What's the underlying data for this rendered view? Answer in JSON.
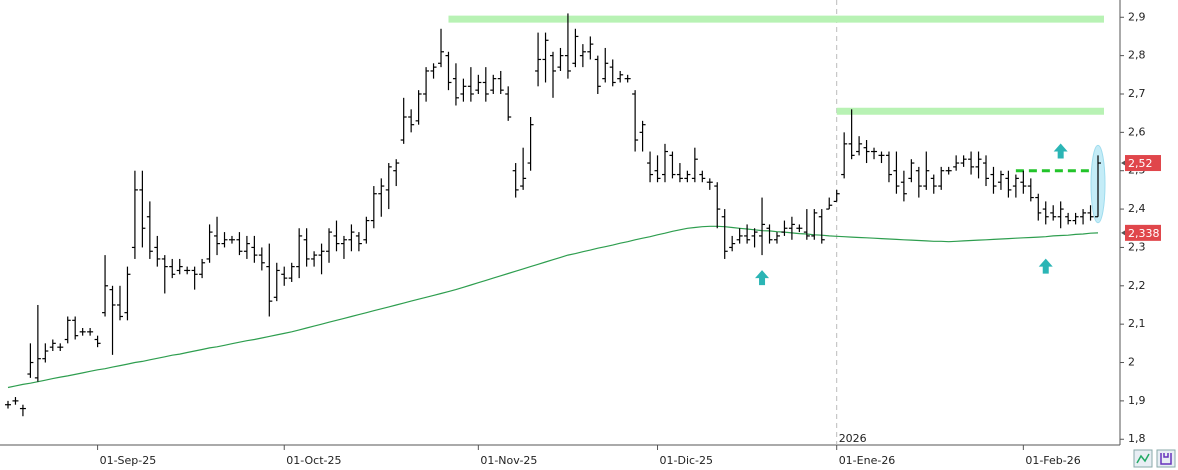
{
  "chart_data": {
    "type": "ohlc",
    "ohlc": [
      [
        1.89,
        1.9,
        1.88,
        1.89
      ],
      [
        1.9,
        1.91,
        1.89,
        1.9
      ],
      [
        1.88,
        1.89,
        1.86,
        1.88
      ],
      [
        1.97,
        2.05,
        1.96,
        2.0
      ],
      [
        1.96,
        2.15,
        1.95,
        2.01
      ],
      [
        2.01,
        2.05,
        2.0,
        2.03
      ],
      [
        2.04,
        2.06,
        2.03,
        2.05
      ],
      [
        2.04,
        2.05,
        2.03,
        2.04
      ],
      [
        2.06,
        2.12,
        2.05,
        2.11
      ],
      [
        2.11,
        2.12,
        2.06,
        2.07
      ],
      [
        2.08,
        2.09,
        2.07,
        2.08
      ],
      [
        2.08,
        2.09,
        2.07,
        2.08
      ],
      [
        2.06,
        2.07,
        2.04,
        2.05
      ],
      [
        2.13,
        2.28,
        2.12,
        2.2
      ],
      [
        2.19,
        2.2,
        2.02,
        2.15
      ],
      [
        2.15,
        2.2,
        2.11,
        2.12
      ],
      [
        2.13,
        2.25,
        2.11,
        2.23
      ],
      [
        2.3,
        2.5,
        2.27,
        2.45
      ],
      [
        2.45,
        2.5,
        2.3,
        2.35
      ],
      [
        2.38,
        2.42,
        2.27,
        2.29
      ],
      [
        2.3,
        2.33,
        2.25,
        2.27
      ],
      [
        2.27,
        2.28,
        2.18,
        2.25
      ],
      [
        2.25,
        2.27,
        2.22,
        2.23
      ],
      [
        2.24,
        2.27,
        2.23,
        2.25
      ],
      [
        2.24,
        2.25,
        2.23,
        2.24
      ],
      [
        2.24,
        2.25,
        2.19,
        2.23
      ],
      [
        2.23,
        2.27,
        2.22,
        2.26
      ],
      [
        2.27,
        2.36,
        2.26,
        2.34
      ],
      [
        2.33,
        2.38,
        2.28,
        2.31
      ],
      [
        2.31,
        2.34,
        2.3,
        2.32
      ],
      [
        2.32,
        2.33,
        2.31,
        2.32
      ],
      [
        2.32,
        2.34,
        2.28,
        2.29
      ],
      [
        2.29,
        2.33,
        2.27,
        2.31
      ],
      [
        2.3,
        2.33,
        2.26,
        2.28
      ],
      [
        2.28,
        2.3,
        2.24,
        2.26
      ],
      [
        2.25,
        2.31,
        2.12,
        2.16
      ],
      [
        2.17,
        2.26,
        2.16,
        2.24
      ],
      [
        2.23,
        2.25,
        2.2,
        2.22
      ],
      [
        2.22,
        2.26,
        2.21,
        2.25
      ],
      [
        2.25,
        2.35,
        2.22,
        2.33
      ],
      [
        2.32,
        2.35,
        2.25,
        2.27
      ],
      [
        2.27,
        2.29,
        2.25,
        2.28
      ],
      [
        2.28,
        2.31,
        2.23,
        2.29
      ],
      [
        2.29,
        2.35,
        2.26,
        2.34
      ],
      [
        2.33,
        2.37,
        2.29,
        2.31
      ],
      [
        2.31,
        2.33,
        2.27,
        2.32
      ],
      [
        2.32,
        2.36,
        2.29,
        2.34
      ],
      [
        2.33,
        2.34,
        2.29,
        2.31
      ],
      [
        2.32,
        2.38,
        2.31,
        2.37
      ],
      [
        2.37,
        2.46,
        2.35,
        2.44
      ],
      [
        2.44,
        2.48,
        2.38,
        2.46
      ],
      [
        2.45,
        2.52,
        2.4,
        2.51
      ],
      [
        2.5,
        2.53,
        2.46,
        2.52
      ],
      [
        2.58,
        2.69,
        2.57,
        2.64
      ],
      [
        2.64,
        2.66,
        2.6,
        2.62
      ],
      [
        2.63,
        2.71,
        2.62,
        2.7
      ],
      [
        2.7,
        2.77,
        2.68,
        2.76
      ],
      [
        2.76,
        2.78,
        2.74,
        2.77
      ],
      [
        2.78,
        2.87,
        2.77,
        2.81
      ],
      [
        2.8,
        2.81,
        2.71,
        2.73
      ],
      [
        2.74,
        2.78,
        2.67,
        2.69
      ],
      [
        2.7,
        2.74,
        2.68,
        2.72
      ],
      [
        2.72,
        2.77,
        2.68,
        2.7
      ],
      [
        2.71,
        2.75,
        2.7,
        2.73
      ],
      [
        2.73,
        2.77,
        2.68,
        2.7
      ],
      [
        2.71,
        2.75,
        2.7,
        2.74
      ],
      [
        2.74,
        2.76,
        2.7,
        2.71
      ],
      [
        2.7,
        2.72,
        2.63,
        2.64
      ],
      [
        2.5,
        2.52,
        2.43,
        2.45
      ],
      [
        2.46,
        2.56,
        2.45,
        2.48
      ],
      [
        2.52,
        2.64,
        2.5,
        2.62
      ],
      [
        2.76,
        2.86,
        2.72,
        2.79
      ],
      [
        2.79,
        2.86,
        2.73,
        2.84
      ],
      [
        2.8,
        2.81,
        2.69,
        2.76
      ],
      [
        2.77,
        2.82,
        2.76,
        2.8
      ],
      [
        2.8,
        2.91,
        2.74,
        2.76
      ],
      [
        2.78,
        2.87,
        2.77,
        2.85
      ],
      [
        2.8,
        2.83,
        2.77,
        2.81
      ],
      [
        2.81,
        2.85,
        2.79,
        2.83
      ],
      [
        2.79,
        2.8,
        2.7,
        2.72
      ],
      [
        2.74,
        2.82,
        2.73,
        2.78
      ],
      [
        2.77,
        2.79,
        2.72,
        2.73
      ],
      [
        2.74,
        2.76,
        2.73,
        2.75
      ],
      [
        2.74,
        2.75,
        2.73,
        2.74
      ],
      [
        2.7,
        2.71,
        2.55,
        2.58
      ],
      [
        2.6,
        2.63,
        2.55,
        2.62
      ],
      [
        2.52,
        2.55,
        2.47,
        2.49
      ],
      [
        2.5,
        2.54,
        2.47,
        2.48
      ],
      [
        2.49,
        2.57,
        2.47,
        2.55
      ],
      [
        2.54,
        2.55,
        2.48,
        2.49
      ],
      [
        2.49,
        2.52,
        2.47,
        2.48
      ],
      [
        2.48,
        2.5,
        2.47,
        2.49
      ],
      [
        2.48,
        2.56,
        2.47,
        2.53
      ],
      [
        2.49,
        2.5,
        2.47,
        2.48
      ],
      [
        2.47,
        2.48,
        2.45,
        2.47
      ],
      [
        2.46,
        2.47,
        2.35,
        2.4
      ],
      [
        2.38,
        2.4,
        2.27,
        2.29
      ],
      [
        2.3,
        2.33,
        2.29,
        2.31
      ],
      [
        2.32,
        2.35,
        2.31,
        2.33
      ],
      [
        2.33,
        2.36,
        2.31,
        2.32
      ],
      [
        2.33,
        2.35,
        2.3,
        2.34
      ],
      [
        2.33,
        2.43,
        2.28,
        2.36
      ],
      [
        2.35,
        2.36,
        2.31,
        2.32
      ],
      [
        2.32,
        2.34,
        2.31,
        2.33
      ],
      [
        2.34,
        2.37,
        2.33,
        2.35
      ],
      [
        2.35,
        2.38,
        2.32,
        2.36
      ],
      [
        2.35,
        2.36,
        2.34,
        2.35
      ],
      [
        2.34,
        2.4,
        2.32,
        2.33
      ],
      [
        2.33,
        2.4,
        2.32,
        2.39
      ],
      [
        2.38,
        2.4,
        2.31,
        2.32
      ],
      [
        2.4,
        2.43,
        2.4,
        2.41
      ],
      [
        2.42,
        2.45,
        2.42,
        2.44
      ],
      [
        2.49,
        2.6,
        2.48,
        2.57
      ],
      [
        2.57,
        2.66,
        2.53,
        2.54
      ],
      [
        2.55,
        2.59,
        2.54,
        2.57
      ],
      [
        2.56,
        2.58,
        2.52,
        2.55
      ],
      [
        2.55,
        2.56,
        2.53,
        2.55
      ],
      [
        2.54,
        2.55,
        2.52,
        2.54
      ],
      [
        2.54,
        2.55,
        2.47,
        2.49
      ],
      [
        2.5,
        2.55,
        2.44,
        2.46
      ],
      [
        2.47,
        2.5,
        2.42,
        2.44
      ],
      [
        2.48,
        2.53,
        2.47,
        2.52
      ],
      [
        2.5,
        2.51,
        2.43,
        2.46
      ],
      [
        2.46,
        2.55,
        2.45,
        2.5
      ],
      [
        2.48,
        2.49,
        2.44,
        2.46
      ],
      [
        2.46,
        2.51,
        2.45,
        2.5
      ],
      [
        2.5,
        2.51,
        2.49,
        2.5
      ],
      [
        2.51,
        2.54,
        2.5,
        2.52
      ],
      [
        2.52,
        2.54,
        2.51,
        2.53
      ],
      [
        2.53,
        2.55,
        2.49,
        2.51
      ],
      [
        2.51,
        2.55,
        2.48,
        2.53
      ],
      [
        2.52,
        2.54,
        2.46,
        2.48
      ],
      [
        2.49,
        2.51,
        2.44,
        2.46
      ],
      [
        2.47,
        2.5,
        2.45,
        2.49
      ],
      [
        2.48,
        2.5,
        2.43,
        2.45
      ],
      [
        2.46,
        2.49,
        2.43,
        2.48
      ],
      [
        2.47,
        2.5,
        2.44,
        2.46
      ],
      [
        2.46,
        2.48,
        2.42,
        2.43
      ],
      [
        2.43,
        2.44,
        2.37,
        2.39
      ],
      [
        2.4,
        2.42,
        2.36,
        2.38
      ],
      [
        2.39,
        2.41,
        2.37,
        2.38
      ],
      [
        2.38,
        2.42,
        2.35,
        2.4
      ],
      [
        2.38,
        2.39,
        2.36,
        2.37
      ],
      [
        2.37,
        2.39,
        2.36,
        2.38
      ],
      [
        2.38,
        2.4,
        2.36,
        2.39
      ],
      [
        2.39,
        2.41,
        2.37,
        2.38
      ],
      [
        2.38,
        2.54,
        2.38,
        2.52
      ]
    ],
    "ma": [
      1.935,
      1.939,
      1.943,
      1.946,
      1.95,
      1.954,
      1.958,
      1.962,
      1.965,
      1.969,
      1.973,
      1.977,
      1.981,
      1.984,
      1.988,
      1.992,
      1.996,
      2.0,
      2.003,
      2.007,
      2.011,
      2.015,
      2.019,
      2.022,
      2.026,
      2.03,
      2.034,
      2.038,
      2.041,
      2.045,
      2.049,
      2.053,
      2.057,
      2.06,
      2.064,
      2.068,
      2.072,
      2.076,
      2.08,
      2.085,
      2.09,
      2.095,
      2.1,
      2.105,
      2.11,
      2.115,
      2.12,
      2.125,
      2.13,
      2.135,
      2.14,
      2.145,
      2.15,
      2.155,
      2.16,
      2.165,
      2.17,
      2.175,
      2.18,
      2.185,
      2.19,
      2.196,
      2.202,
      2.208,
      2.214,
      2.22,
      2.226,
      2.232,
      2.238,
      2.244,
      2.25,
      2.256,
      2.262,
      2.268,
      2.274,
      2.28,
      2.284,
      2.289,
      2.293,
      2.298,
      2.302,
      2.306,
      2.311,
      2.315,
      2.32,
      2.324,
      2.328,
      2.333,
      2.337,
      2.342,
      2.346,
      2.35,
      2.352,
      2.354,
      2.355,
      2.355,
      2.354,
      2.352,
      2.35,
      2.348,
      2.346,
      2.344,
      2.343,
      2.341,
      2.34,
      2.338,
      2.336,
      2.335,
      2.333,
      2.332,
      2.33,
      2.329,
      2.328,
      2.327,
      2.326,
      2.325,
      2.324,
      2.323,
      2.322,
      2.321,
      2.32,
      2.319,
      2.318,
      2.317,
      2.316,
      2.316,
      2.315,
      2.316,
      2.317,
      2.318,
      2.319,
      2.32,
      2.321,
      2.322,
      2.323,
      2.324,
      2.325,
      2.326,
      2.327,
      2.328,
      2.33,
      2.331,
      2.332,
      2.334,
      2.335,
      2.337,
      2.338
    ],
    "categories": [
      null,
      null,
      null,
      null,
      null,
      null,
      null,
      null,
      null,
      null,
      null,
      null,
      "01-Sep-25",
      null,
      null,
      null,
      null,
      null,
      null,
      null,
      null,
      null,
      null,
      null,
      null,
      null,
      null,
      null,
      null,
      null,
      null,
      null,
      null,
      null,
      null,
      null,
      null,
      "01-Oct-25",
      null,
      null,
      null,
      null,
      null,
      null,
      null,
      null,
      null,
      null,
      null,
      null,
      null,
      null,
      null,
      null,
      null,
      null,
      null,
      null,
      null,
      null,
      null,
      null,
      null,
      "01-Nov-25",
      null,
      null,
      null,
      null,
      null,
      null,
      null,
      null,
      null,
      null,
      null,
      null,
      null,
      null,
      null,
      null,
      null,
      null,
      null,
      null,
      null,
      null,
      null,
      "01-Dic-25",
      null,
      null,
      null,
      null,
      null,
      null,
      null,
      null,
      null,
      null,
      null,
      null,
      null,
      null,
      null,
      null,
      null,
      null,
      null,
      null,
      null,
      null,
      null,
      "01-Ene-26",
      null,
      null,
      null,
      null,
      null,
      null,
      null,
      null,
      null,
      null,
      null,
      null,
      null,
      null,
      null,
      null,
      null,
      null,
      null,
      null,
      null,
      null,
      null,
      null,
      "01-Feb-26",
      null,
      null,
      null,
      null,
      null,
      null,
      null,
      null,
      null,
      null
    ],
    "year_marker": "2026",
    "bar_color": "#000000",
    "ma_color": "#2e9e4f",
    "ylim": [
      1.785,
      2.945
    ],
    "yticks": [
      {
        "value": 1.8,
        "label": "1,8"
      },
      {
        "value": 1.9,
        "label": "1,9"
      },
      {
        "value": 2,
        "label": "2"
      },
      {
        "value": 2.1,
        "label": "2,1"
      },
      {
        "value": 2.2,
        "label": "2,2"
      },
      {
        "value": 2.3,
        "label": "2,3"
      },
      {
        "value": 2.4,
        "label": "2,4"
      },
      {
        "value": 2.5,
        "label": "2,5"
      },
      {
        "value": 2.6,
        "label": "2,6"
      },
      {
        "value": 2.7,
        "label": "2,7"
      },
      {
        "value": 2.8,
        "label": "2,8"
      },
      {
        "value": 2.9,
        "label": "2,9"
      }
    ],
    "last_close": {
      "value": 2.52,
      "label": "2,52"
    },
    "ma_last": {
      "value": 2.338,
      "label": "2,338"
    },
    "levels": [
      {
        "value": 2.895,
        "start": 59,
        "end": 146,
        "color": "#b8f2b4",
        "style": "solid"
      },
      {
        "value": 2.655,
        "start": 111,
        "end": 146,
        "color": "#b8f2b4",
        "style": "solid"
      },
      {
        "value": 2.5,
        "start": 135,
        "end": 146,
        "color": "#22c42a",
        "style": "dashed"
      }
    ],
    "signals": [
      {
        "index": 101,
        "value": 2.22
      },
      {
        "index": 139,
        "value": 2.25
      },
      {
        "index": 141,
        "value": 2.55
      }
    ],
    "signal_color": "#2bb5b5"
  }
}
